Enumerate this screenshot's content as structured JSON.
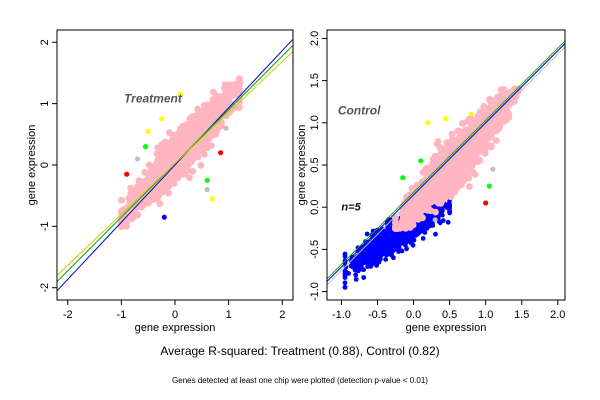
{
  "chart_data": [
    {
      "type": "scatter",
      "panel_label": "Treatment",
      "annotation": "",
      "xlabel": "gene expression",
      "ylabel": "gene expression",
      "xlim": [
        -2.2,
        2.2
      ],
      "ylim": [
        -2.2,
        2.2
      ],
      "xticks": [
        -2,
        -1,
        0,
        1,
        2
      ],
      "yticks": [
        -2,
        -1,
        0,
        1,
        2
      ],
      "tick_labels_x": [
        "-2",
        "-1",
        "0",
        "1",
        "2"
      ],
      "tick_labels_y": [
        "-2",
        "-1",
        "0",
        "1",
        "2"
      ],
      "grid": false,
      "main_cloud": {
        "color": "#FFB6C1",
        "x_range": [
          -1.0,
          1.2
        ],
        "y_range": [
          -1.0,
          1.4
        ],
        "slope": 1.0
      },
      "outliers": [
        {
          "x": -0.25,
          "y": 0.75,
          "color": "#FFFF00"
        },
        {
          "x": -0.5,
          "y": 0.55,
          "color": "#FFFF00"
        },
        {
          "x": 0.1,
          "y": 1.15,
          "color": "#FFFF00"
        },
        {
          "x": 0.55,
          "y": 0.85,
          "color": "#FFFF00"
        },
        {
          "x": 0.7,
          "y": -0.55,
          "color": "#FFFF00"
        },
        {
          "x": 0.4,
          "y": 0.3,
          "color": "#00FF00"
        },
        {
          "x": -0.55,
          "y": 0.3,
          "color": "#00FF00"
        },
        {
          "x": 0.6,
          "y": -0.25,
          "color": "#00FF00"
        },
        {
          "x": -0.95,
          "y": -0.9,
          "color": "#00FF00"
        },
        {
          "x": -0.2,
          "y": -0.85,
          "color": "#0000FF"
        },
        {
          "x": 0.85,
          "y": 0.2,
          "color": "#FF0000"
        },
        {
          "x": -0.9,
          "y": -0.15,
          "color": "#FF0000"
        },
        {
          "x": 0.95,
          "y": 0.6,
          "color": "#C0C0C0"
        },
        {
          "x": 0.6,
          "y": -0.4,
          "color": "#C0C0C0"
        },
        {
          "x": -0.7,
          "y": 0.1,
          "color": "#C0C0C0"
        }
      ],
      "fit_lines": [
        {
          "color": "#0000CC",
          "x": [
            -2.2,
            2.2
          ],
          "y": [
            -2.05,
            2.05
          ]
        },
        {
          "color": "#00AA00",
          "x": [
            -2.2,
            2.2
          ],
          "y": [
            -1.9,
            1.95
          ]
        },
        {
          "color": "#CCCC00",
          "x": [
            -2.2,
            2.2
          ],
          "y": [
            -1.8,
            1.85
          ]
        }
      ]
    },
    {
      "type": "scatter",
      "panel_label": "Control",
      "annotation": "n=5",
      "xlabel": "gene expression",
      "ylabel": "gene expression",
      "xlim": [
        -1.2,
        2.1
      ],
      "ylim": [
        -1.1,
        2.1
      ],
      "xticks": [
        -1.0,
        -0.5,
        0.0,
        0.5,
        1.0,
        1.5,
        2.0
      ],
      "yticks": [
        -1.0,
        -0.5,
        0.0,
        0.5,
        1.0,
        1.5,
        2.0
      ],
      "tick_labels_x": [
        "-1.0",
        "-0.5",
        "0.0",
        "0.5",
        "1.0",
        "1.5",
        "2.0"
      ],
      "tick_labels_y": [
        "-1.0",
        "-0.5",
        "0.0",
        "0.5",
        "1.0",
        "1.5",
        "2.0"
      ],
      "grid": false,
      "blue_cloud": {
        "color": "#0000FF",
        "x_range": [
          -0.95,
          0.5
        ],
        "y_range": [
          -0.95,
          0.3
        ]
      },
      "main_cloud": {
        "color": "#FFB6C1",
        "x_range": [
          -0.25,
          1.45
        ],
        "y_range": [
          -0.25,
          1.4
        ],
        "slope": 1.0
      },
      "outliers": [
        {
          "x": 0.2,
          "y": 1.0,
          "color": "#FFFF00"
        },
        {
          "x": 0.45,
          "y": 1.05,
          "color": "#FFFF00"
        },
        {
          "x": 0.8,
          "y": 1.1,
          "color": "#FFFF00"
        },
        {
          "x": 0.1,
          "y": 0.55,
          "color": "#00FF00"
        },
        {
          "x": -0.15,
          "y": 0.35,
          "color": "#00FF00"
        },
        {
          "x": 1.05,
          "y": 0.25,
          "color": "#00FF00"
        },
        {
          "x": 1.0,
          "y": 0.05,
          "color": "#FF0000"
        },
        {
          "x": 0.6,
          "y": 0.7,
          "color": "#FF0000"
        },
        {
          "x": 1.1,
          "y": 0.45,
          "color": "#C0C0C0"
        },
        {
          "x": 0.3,
          "y": -0.15,
          "color": "#C0C0C0"
        }
      ],
      "fit_lines": [
        {
          "color": "#00AA00",
          "x": [
            -1.2,
            2.1
          ],
          "y": [
            -0.85,
            1.97
          ]
        },
        {
          "color": "#0000CC",
          "x": [
            -1.2,
            2.1
          ],
          "y": [
            -0.88,
            1.94
          ]
        },
        {
          "color": "#C0C0C0",
          "x": [
            -1.2,
            2.1
          ],
          "y": [
            -0.92,
            1.9
          ]
        }
      ]
    }
  ],
  "caption": {
    "main": "Average R-squared: Treatment (0.88), Control (0.82)",
    "sub": "Genes detected at least one chip were plotted (detection p-value < 0.01)"
  }
}
